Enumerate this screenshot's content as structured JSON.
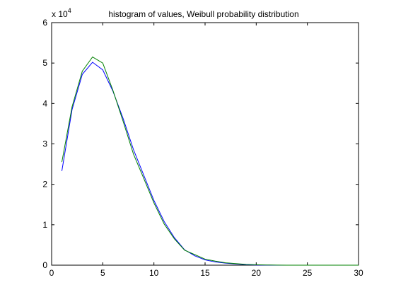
{
  "chart_data": {
    "type": "line",
    "title": "histogram of values, Weibull probability distribution",
    "xlabel": "",
    "ylabel": "",
    "y_exponent_label": {
      "base": "x 10",
      "exp": "4"
    },
    "xlim": [
      0,
      30
    ],
    "ylim": [
      0,
      6
    ],
    "y_scale_factor": 10000,
    "grid": false,
    "legend": "none",
    "x_ticks": [
      0,
      5,
      10,
      15,
      20,
      25,
      30
    ],
    "y_ticks": [
      0,
      1,
      2,
      3,
      4,
      5,
      6
    ],
    "x": [
      1,
      2,
      3,
      4,
      5,
      6,
      7,
      8,
      9,
      10,
      11,
      12,
      13,
      14,
      15,
      16,
      17,
      18,
      19,
      20,
      21,
      22,
      23,
      24,
      25,
      26,
      27,
      28,
      29,
      30
    ],
    "series": [
      {
        "color": "#0000ff",
        "values": [
          2.33,
          3.85,
          4.72,
          5.02,
          4.83,
          4.3,
          3.62,
          2.86,
          2.23,
          1.6,
          1.08,
          0.68,
          0.38,
          0.23,
          0.13,
          0.08,
          0.05,
          0.03,
          0.01,
          0.005,
          0.002,
          0.001,
          0,
          0,
          0,
          0,
          0,
          0,
          0,
          0
        ]
      },
      {
        "color": "#008000",
        "values": [
          2.55,
          3.92,
          4.8,
          5.15,
          5.0,
          4.32,
          3.55,
          2.75,
          2.15,
          1.54,
          1.02,
          0.65,
          0.37,
          0.26,
          0.15,
          0.1,
          0.06,
          0.04,
          0.02,
          0.01,
          0.005,
          0.002,
          0.001,
          0,
          0,
          0,
          0,
          0,
          0,
          0
        ]
      }
    ]
  }
}
